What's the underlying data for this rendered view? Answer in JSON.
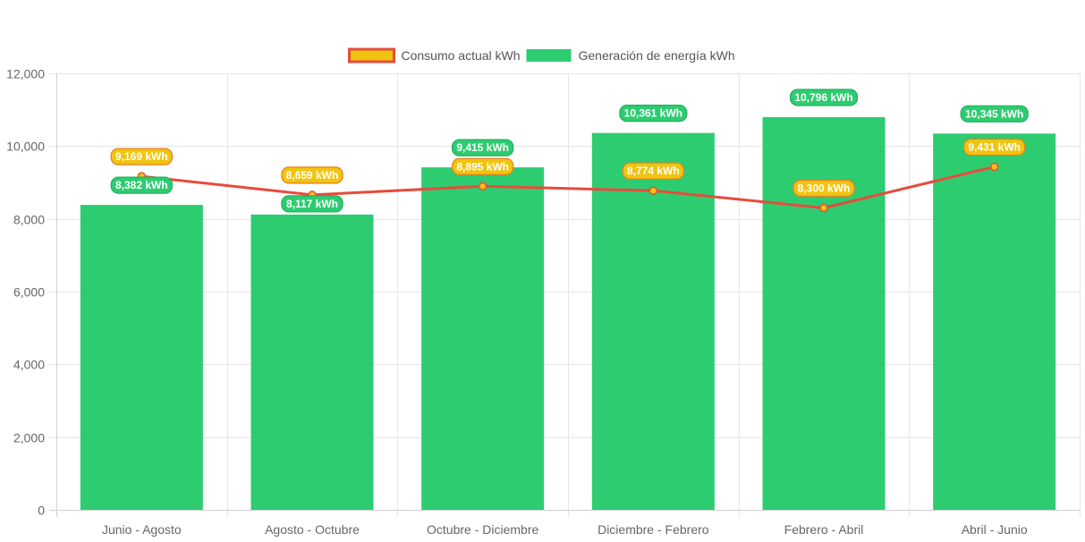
{
  "chart_data": {
    "type": "bar",
    "categories": [
      "Junio - Agosto",
      "Agosto - Octubre",
      "Octubre - Diciembre",
      "Diciembre - Febrero",
      "Febrero - Abril",
      "Abril - Junio"
    ],
    "series": [
      {
        "name": "Consumo actual kWh",
        "type": "line",
        "values": [
          9169,
          8659,
          8895,
          8774,
          8300,
          9431
        ],
        "labels": [
          "9,169 kWh",
          "8,659 kWh",
          "8,895 kWh",
          "8,774 kWh",
          "8,300 kWh",
          "9,431 kWh"
        ],
        "color": "#e74c3c",
        "fill": "#f1c40f"
      },
      {
        "name": "Generación de energía kWh",
        "type": "bar",
        "values": [
          8382,
          8117,
          9415,
          10361,
          10796,
          10345
        ],
        "labels": [
          "8,382 kWh",
          "8,117 kWh",
          "9,415 kWh",
          "10,361 kWh",
          "10,796 kWh",
          "10,345 kWh"
        ],
        "color": "#2ecc71"
      }
    ],
    "ylim": [
      0,
      12000
    ],
    "yticks": [
      0,
      2000,
      4000,
      6000,
      8000,
      10000,
      12000
    ],
    "ytick_labels": [
      "0",
      "2,000",
      "4,000",
      "6,000",
      "8,000",
      "10,000",
      "12,000"
    ],
    "grid": true,
    "legend_position": "top-center",
    "title": "",
    "xlabel": "",
    "ylabel": ""
  }
}
